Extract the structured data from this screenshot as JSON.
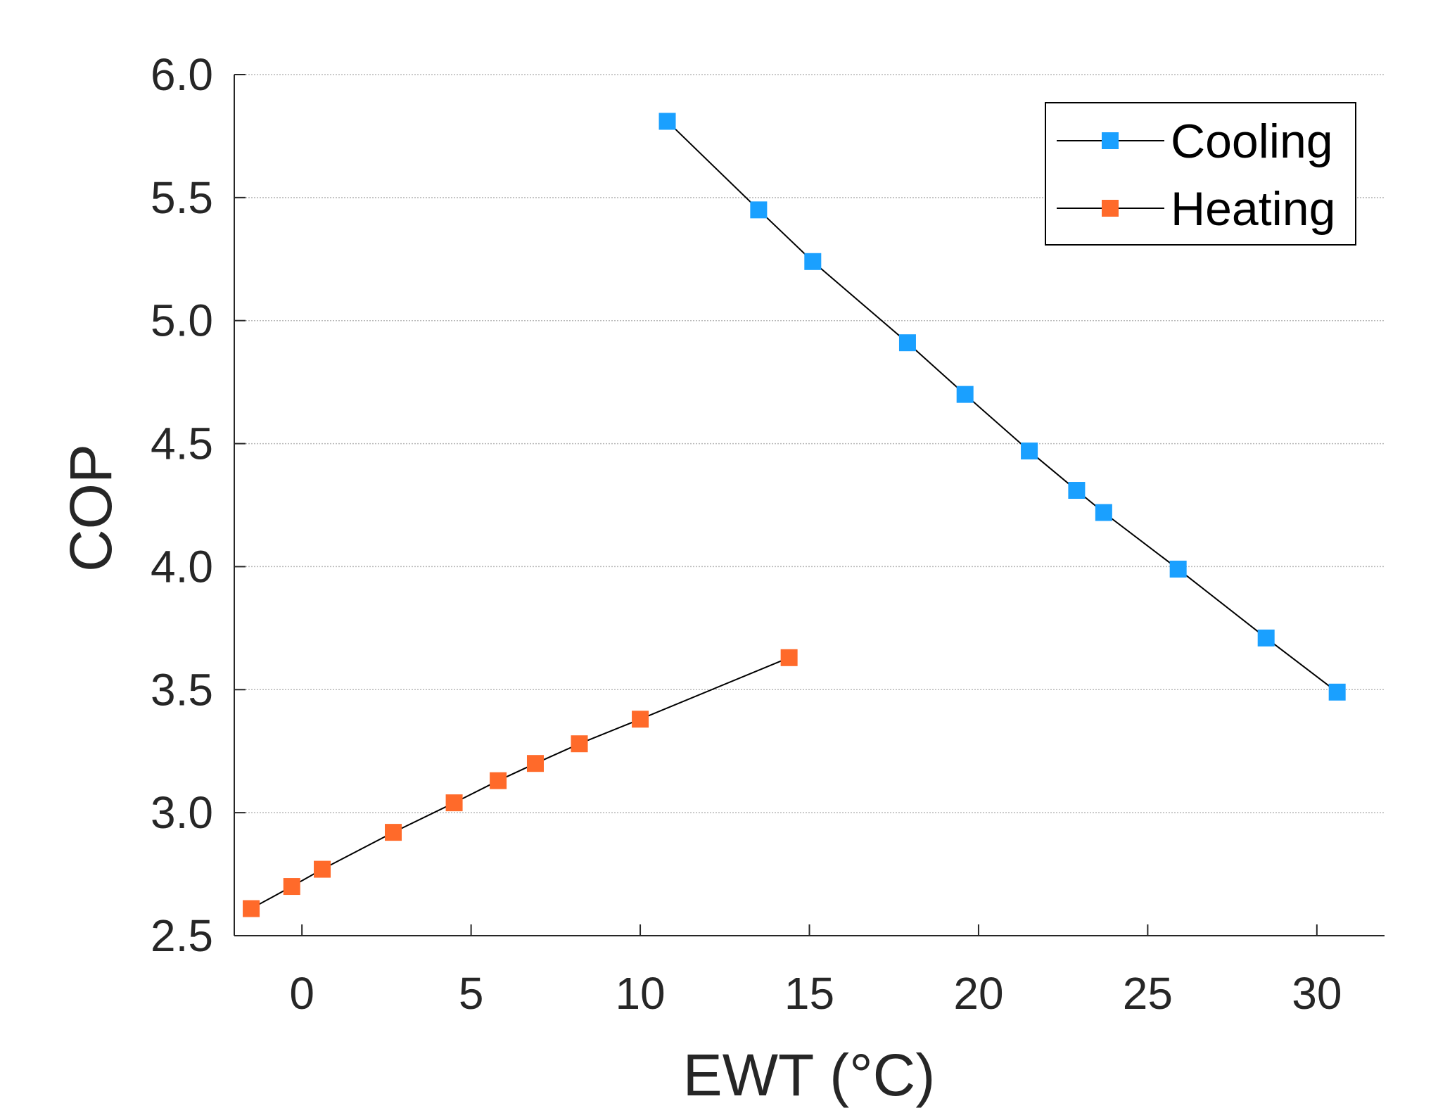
{
  "chart_data": {
    "type": "line",
    "xlabel": "EWT (°C)",
    "ylabel": "COP",
    "xlim": [
      -2,
      32
    ],
    "ylim": [
      2.5,
      6.0
    ],
    "xticks": [
      0,
      5,
      10,
      15,
      20,
      25,
      30
    ],
    "xtick_labels": [
      "0",
      "5",
      "10",
      "15",
      "20",
      "25",
      "30"
    ],
    "yticks": [
      2.5,
      3.0,
      3.5,
      4.0,
      4.5,
      5.0,
      5.5,
      6.0
    ],
    "ytick_labels": [
      "2.5",
      "3.0",
      "3.5",
      "4.0",
      "4.5",
      "5.0",
      "5.5",
      "6.0"
    ],
    "grid": "horizontal dotted",
    "legend_position": "top-right",
    "marker": "square",
    "line_color": "#000000",
    "series": [
      {
        "name": "Cooling",
        "color": "#1aa0ff",
        "x": [
          10.8,
          13.5,
          15.1,
          17.9,
          19.6,
          21.5,
          22.9,
          23.7,
          25.9,
          28.5,
          30.6
        ],
        "y": [
          5.81,
          5.45,
          5.24,
          4.91,
          4.7,
          4.47,
          4.31,
          4.22,
          3.99,
          3.71,
          3.49
        ]
      },
      {
        "name": "Heating",
        "color": "#ff6a2a",
        "x": [
          -1.5,
          -0.3,
          0.6,
          2.7,
          4.5,
          5.8,
          6.9,
          8.2,
          10.0,
          14.4
        ],
        "y": [
          2.61,
          2.7,
          2.77,
          2.92,
          3.04,
          3.13,
          3.2,
          3.28,
          3.38,
          3.63
        ]
      }
    ]
  }
}
